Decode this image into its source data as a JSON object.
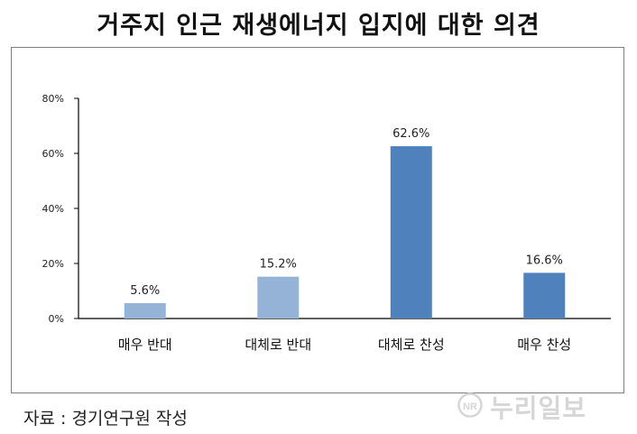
{
  "title": "거주지 인근 재생에너지 입지에 대한 의견",
  "source": "자료 : 경기연구원 작성",
  "watermark": {
    "text": "누리일보",
    "logo": "NR"
  },
  "colors": {
    "light_bar": "#95b3d7",
    "dark_bar": "#4f81bd",
    "axis": "#000000",
    "text": "#111111"
  },
  "chart_data": {
    "type": "bar",
    "categories": [
      "매우 반대",
      "대체로 반대",
      "대체로 찬성",
      "매우 찬성"
    ],
    "values": [
      5.6,
      15.2,
      62.6,
      16.6
    ],
    "data_labels": [
      "5.6%",
      "15.2%",
      "62.6%",
      "16.6%"
    ],
    "bar_colors": [
      "#95b3d7",
      "#95b3d7",
      "#4f81bd",
      "#4f81bd"
    ],
    "yticks": [
      0,
      20,
      40,
      60,
      80
    ],
    "ytick_labels": [
      "0%",
      "20%",
      "40%",
      "60%",
      "80%"
    ],
    "ylim": [
      0,
      80
    ],
    "grid": false,
    "legend": "none"
  }
}
